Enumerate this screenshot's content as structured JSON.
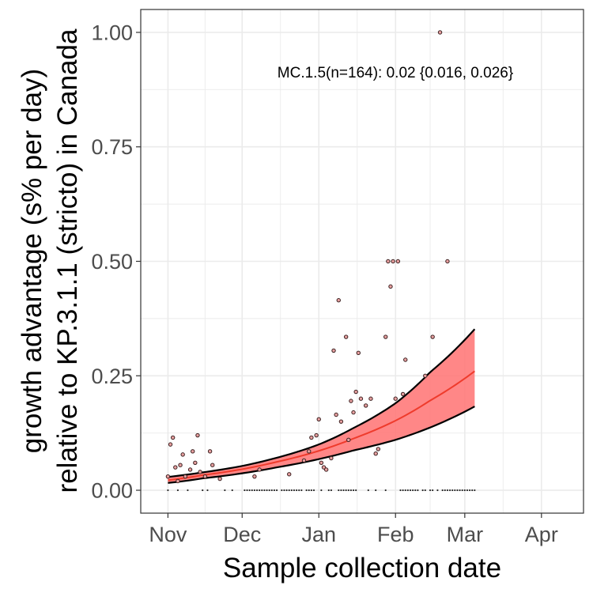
{
  "chart_data": {
    "type": "scatter",
    "title": "",
    "xlabel": "Sample collection date",
    "ylabel": [
      "growth advantage (s% per day)",
      "relative to KP.3.1.1 (stricto) in Canada"
    ],
    "annotation": "MC.1.5(n=164): 0.02 {0.016, 0.026}",
    "x_ticks": [
      "Nov",
      "Dec",
      "Jan",
      "Feb",
      "Mar",
      "Apr"
    ],
    "x_tick_dates": [
      "2024-11-01",
      "2024-12-01",
      "2025-01-01",
      "2025-02-01",
      "2025-03-01",
      "2025-04-01"
    ],
    "xlim": [
      "2024-10-21",
      "2025-04-18"
    ],
    "y_ticks": [
      "0.00",
      "0.25",
      "0.50",
      "0.75",
      "1.00"
    ],
    "y_tick_values": [
      0,
      0.25,
      0.5,
      0.75,
      1.0
    ],
    "ylim": [
      -0.05,
      1.05
    ],
    "grid": true,
    "colors": {
      "fit_line": "#ef3b2c",
      "ribbon_fill": "#ff7a7a",
      "ci_line": "#000000",
      "point_fill": "#e8a0a0",
      "point_stroke": "#3a2020",
      "grid": "#ebebeb",
      "panel_border": "#333333"
    },
    "fit": {
      "x": [
        "2024-11-01",
        "2024-11-15",
        "2024-12-01",
        "2024-12-15",
        "2025-01-01",
        "2025-01-15",
        "2025-02-01",
        "2025-02-15",
        "2025-03-05"
      ],
      "y": [
        0.022,
        0.033,
        0.046,
        0.062,
        0.086,
        0.113,
        0.152,
        0.196,
        0.26
      ]
    },
    "ci_upper": {
      "x": [
        "2024-11-01",
        "2024-11-15",
        "2024-12-01",
        "2024-12-15",
        "2025-01-01",
        "2025-01-15",
        "2025-02-01",
        "2025-02-15",
        "2025-03-05"
      ],
      "y": [
        0.029,
        0.039,
        0.053,
        0.071,
        0.1,
        0.136,
        0.19,
        0.258,
        0.352
      ]
    },
    "ci_lower": {
      "x": [
        "2024-11-01",
        "2024-11-15",
        "2024-12-01",
        "2024-12-15",
        "2025-01-01",
        "2025-01-15",
        "2025-02-01",
        "2025-02-15",
        "2025-03-05"
      ],
      "y": [
        0.016,
        0.026,
        0.037,
        0.05,
        0.068,
        0.087,
        0.11,
        0.137,
        0.183
      ]
    },
    "points": [
      {
        "x": "2024-11-01",
        "y": 0.03
      },
      {
        "x": "2024-11-02",
        "y": 0.1
      },
      {
        "x": "2024-11-03",
        "y": 0.115
      },
      {
        "x": "2024-11-04",
        "y": 0.05
      },
      {
        "x": "2024-11-05",
        "y": 0.02
      },
      {
        "x": "2024-11-06",
        "y": 0.055
      },
      {
        "x": "2024-11-07",
        "y": 0.078
      },
      {
        "x": "2024-11-08",
        "y": 0.03
      },
      {
        "x": "2024-11-10",
        "y": 0.045
      },
      {
        "x": "2024-11-11",
        "y": 0.085
      },
      {
        "x": "2024-11-12",
        "y": 0.06
      },
      {
        "x": "2024-11-13",
        "y": 0.12
      },
      {
        "x": "2024-11-14",
        "y": 0.04
      },
      {
        "x": "2024-11-16",
        "y": 0.03
      },
      {
        "x": "2024-11-18",
        "y": 0.085
      },
      {
        "x": "2024-11-19",
        "y": 0.055
      },
      {
        "x": "2024-11-22",
        "y": 0.025
      },
      {
        "x": "2024-12-06",
        "y": 0.03
      },
      {
        "x": "2024-12-08",
        "y": 0.045
      },
      {
        "x": "2024-12-20",
        "y": 0.035
      },
      {
        "x": "2024-12-26",
        "y": 0.065
      },
      {
        "x": "2024-12-28",
        "y": 0.085
      },
      {
        "x": "2024-12-29",
        "y": 0.115
      },
      {
        "x": "2024-12-31",
        "y": 0.12
      },
      {
        "x": "2025-01-01",
        "y": 0.155
      },
      {
        "x": "2025-01-02",
        "y": 0.06
      },
      {
        "x": "2025-01-03",
        "y": 0.05
      },
      {
        "x": "2025-01-04",
        "y": 0.045
      },
      {
        "x": "2025-01-06",
        "y": 0.07
      },
      {
        "x": "2025-01-07",
        "y": 0.305
      },
      {
        "x": "2025-01-08",
        "y": 0.165
      },
      {
        "x": "2025-01-09",
        "y": 0.415
      },
      {
        "x": "2025-01-10",
        "y": 0.15
      },
      {
        "x": "2025-01-12",
        "y": 0.335
      },
      {
        "x": "2025-01-13",
        "y": 0.11
      },
      {
        "x": "2025-01-14",
        "y": 0.195
      },
      {
        "x": "2025-01-15",
        "y": 0.17
      },
      {
        "x": "2025-01-16",
        "y": 0.215
      },
      {
        "x": "2025-01-17",
        "y": 0.3
      },
      {
        "x": "2025-01-18",
        "y": 0.2
      },
      {
        "x": "2025-01-20",
        "y": 0.185
      },
      {
        "x": "2025-01-22",
        "y": 0.2
      },
      {
        "x": "2025-01-24",
        "y": 0.08
      },
      {
        "x": "2025-01-25",
        "y": 0.09
      },
      {
        "x": "2025-01-28",
        "y": 0.335
      },
      {
        "x": "2025-01-29",
        "y": 0.5
      },
      {
        "x": "2025-01-30",
        "y": 0.445
      },
      {
        "x": "2025-01-31",
        "y": 0.5
      },
      {
        "x": "2025-02-01",
        "y": 0.2
      },
      {
        "x": "2025-02-02",
        "y": 0.5
      },
      {
        "x": "2025-02-04",
        "y": 0.21
      },
      {
        "x": "2025-02-05",
        "y": 0.285
      },
      {
        "x": "2025-02-13",
        "y": 0.25
      },
      {
        "x": "2025-02-16",
        "y": 0.335
      },
      {
        "x": "2025-02-19",
        "y": 1.0
      },
      {
        "x": "2025-02-22",
        "y": 0.5
      }
    ],
    "zero_points_x": [
      "2024-11-01",
      "2024-11-05",
      "2024-11-09",
      "2024-11-15",
      "2024-11-17",
      "2024-11-24",
      "2024-11-27",
      "2024-12-02",
      "2024-12-03",
      "2024-12-04",
      "2024-12-05",
      "2024-12-06",
      "2024-12-07",
      "2024-12-08",
      "2024-12-09",
      "2024-12-10",
      "2024-12-11",
      "2024-12-12",
      "2024-12-13",
      "2024-12-14",
      "2024-12-15",
      "2024-12-17",
      "2024-12-18",
      "2024-12-19",
      "2024-12-20",
      "2024-12-21",
      "2024-12-22",
      "2024-12-23",
      "2024-12-24",
      "2024-12-25",
      "2024-12-27",
      "2024-12-28",
      "2024-12-29",
      "2024-12-30",
      "2025-01-02",
      "2025-01-05",
      "2025-01-06",
      "2025-01-09",
      "2025-01-10",
      "2025-01-11",
      "2025-01-12",
      "2025-01-13",
      "2025-01-14",
      "2025-01-15",
      "2025-01-16",
      "2025-01-21",
      "2025-01-24",
      "2025-01-28",
      "2025-02-03",
      "2025-02-04",
      "2025-02-05",
      "2025-02-06",
      "2025-02-07",
      "2025-02-08",
      "2025-02-09",
      "2025-02-10",
      "2025-02-12",
      "2025-02-13",
      "2025-02-15",
      "2025-02-16",
      "2025-02-18",
      "2025-02-20",
      "2025-02-21",
      "2025-02-22",
      "2025-02-23",
      "2025-02-24",
      "2025-02-25",
      "2025-02-26",
      "2025-02-27",
      "2025-02-28",
      "2025-03-01",
      "2025-03-02",
      "2025-03-03",
      "2025-03-04",
      "2025-03-05"
    ]
  }
}
